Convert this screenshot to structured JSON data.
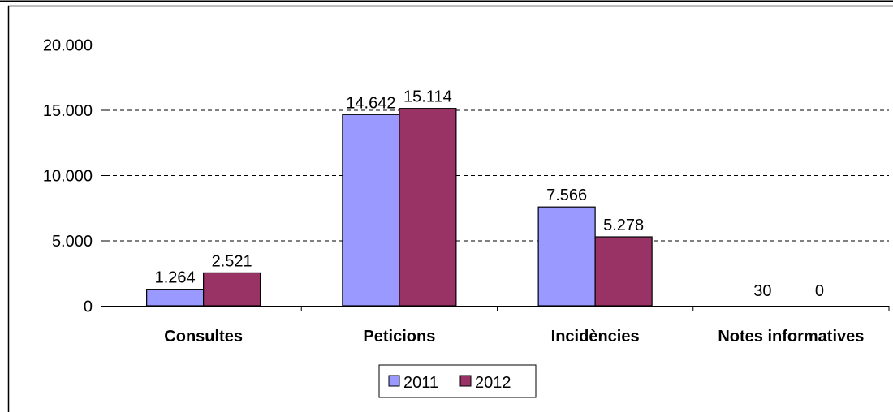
{
  "chart_data": {
    "type": "bar",
    "categories": [
      "Consultes",
      "Peticions",
      "Incidències",
      "Notes informatives"
    ],
    "series": [
      {
        "name": "2011",
        "values": [
          1264,
          14642,
          7566,
          30
        ],
        "labels": [
          "1.264",
          "14.642",
          "7.566",
          "30"
        ]
      },
      {
        "name": "2012",
        "values": [
          2521,
          15114,
          5278,
          0
        ],
        "labels": [
          "2.521",
          "15.114",
          "5.278",
          "0"
        ]
      }
    ],
    "ylim": [
      0,
      20000
    ],
    "yticks": [
      0,
      5000,
      10000,
      15000,
      20000
    ],
    "ytick_labels": [
      "0",
      "5.000",
      "10.000",
      "15.000",
      "20.000"
    ],
    "grid": true,
    "legend_position": "bottom-center",
    "title": "",
    "xlabel": "",
    "ylabel": ""
  },
  "colors": {
    "series_2011": "#9999ff",
    "series_2012": "#993366",
    "grid": "#000000",
    "axis": "#000000"
  }
}
